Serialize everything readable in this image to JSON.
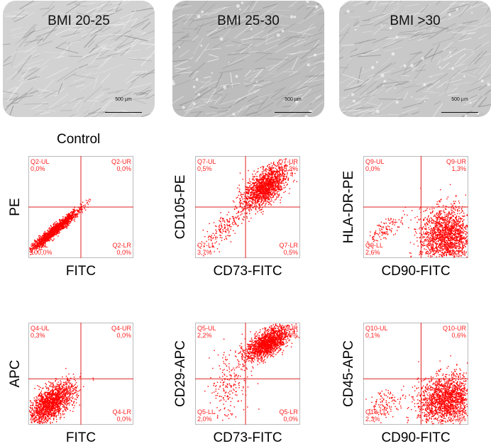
{
  "micrographs": [
    {
      "label": "BMI 20-25",
      "scale": "500 µm",
      "tone": "#d2d2d2"
    },
    {
      "label": "BMI 25-30",
      "scale": "500 µm",
      "tone": "#bdbdbd"
    },
    {
      "label": "BMI >30",
      "scale": "500 µm",
      "tone": "#c8c8c8"
    }
  ],
  "control_title": "Control",
  "plots": [
    {
      "ylabel": "PE",
      "xlabel": "FITC",
      "quadrants": {
        "ul_name": "Q2-UL",
        "ul_val": "0,0%",
        "ur_name": "Q2-UR",
        "ur_val": "0,0%",
        "ll_name": "Q2-LL",
        "ll_val": "100,0%",
        "lr_name": "Q2-LR",
        "lr_val": "0,0%"
      }
    },
    {
      "ylabel": "CD105-PE",
      "xlabel": "CD73-FITC",
      "quadrants": {
        "ul_name": "Q7-UL",
        "ul_val": "0,5%",
        "ur_name": "Q7-UR",
        "ur_val": "95,3%",
        "ll_name": "Q7-LL",
        "ll_val": "3,7%",
        "lr_name": "Q7-LR",
        "lr_val": "0,5%"
      }
    },
    {
      "ylabel": "HLA-DR-PE",
      "xlabel": "CD90-FITC",
      "quadrants": {
        "ul_name": "Q9-UL",
        "ul_val": "0,0%",
        "ur_name": "Q9-UR",
        "ur_val": "1,3%",
        "ll_name": "Q9-LL",
        "ll_val": "2,6%",
        "lr_name": "Q9-LR",
        "lr_val": "96,2%"
      }
    },
    {
      "ylabel": "APC",
      "xlabel": "FITC",
      "quadrants": {
        "ul_name": "Q4-UL",
        "ul_val": "0,3%",
        "ur_name": "Q4-UR",
        "ur_val": "0,0%",
        "ll_name": "Q4-LL",
        "ll_val": "99,7%",
        "lr_name": "Q4-LR",
        "lr_val": "0,0%"
      }
    },
    {
      "ylabel": "CD29-APC",
      "xlabel": "CD73-FITC",
      "quadrants": {
        "ul_name": "Q5-UL",
        "ul_val": "2,2%",
        "ur_name": "Q5-UR",
        "ur_val": "95,8%",
        "ll_name": "Q5-LL",
        "ll_val": "2,0%",
        "lr_name": "Q5-LR",
        "lr_val": "0,0%"
      }
    },
    {
      "ylabel": "CD45-APC",
      "xlabel": "CD90-FITC",
      "quadrants": {
        "ul_name": "Q10-UL",
        "ul_val": "0,1%",
        "ur_name": "Q10-UR",
        "ur_val": "0,6%",
        "ll_name": "Q10-LL",
        "ll_val": "2,3%",
        "lr_name": "Q10-LR",
        "lr_val": "97,0%"
      }
    }
  ],
  "colors": {
    "accent": "#ff0000",
    "gate": "#e02020",
    "panel_border": "#bbbbbb"
  }
}
